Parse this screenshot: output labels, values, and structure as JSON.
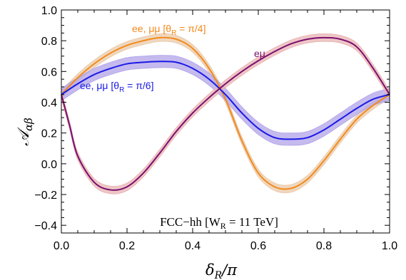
{
  "chart_data": {
    "type": "line",
    "xlabel": "δ_R/π",
    "ylabel": "𝒜_αβ",
    "xlim": [
      0.0,
      1.0
    ],
    "ylim": [
      -0.45,
      1.0
    ],
    "xticks": [
      "0.0",
      "0.2",
      "0.4",
      "0.6",
      "0.8",
      "1.0"
    ],
    "yticks": [
      "-0.4",
      "-0.2",
      "0.0",
      "0.2",
      "0.4",
      "0.6",
      "0.8",
      "1.0"
    ],
    "inset_text": "FCC−hh [W_R = 11 TeV]",
    "series": [
      {
        "name": "ee, μμ [θ_R = π/4]",
        "color": "#f28a1c",
        "band_color": "#e9c9a8",
        "x": [
          0.0,
          0.05,
          0.1,
          0.15,
          0.2,
          0.25,
          0.3,
          0.35,
          0.4,
          0.45,
          0.5,
          0.55,
          0.6,
          0.65,
          0.7,
          0.75,
          0.8,
          0.85,
          0.9,
          0.95,
          1.0
        ],
        "y": [
          0.45,
          0.56,
          0.65,
          0.72,
          0.77,
          0.8,
          0.82,
          0.81,
          0.75,
          0.62,
          0.42,
          0.15,
          -0.06,
          -0.15,
          -0.16,
          -0.1,
          0.02,
          0.16,
          0.29,
          0.38,
          0.45
        ],
        "band": 0.025
      },
      {
        "name": "ee, μμ [θ_R = π/6]",
        "color": "#1a1ae6",
        "band_color": "#b2a3e8",
        "x": [
          0.0,
          0.05,
          0.1,
          0.15,
          0.2,
          0.25,
          0.3,
          0.35,
          0.4,
          0.45,
          0.5,
          0.55,
          0.6,
          0.65,
          0.7,
          0.75,
          0.8,
          0.85,
          0.9,
          0.95,
          1.0
        ],
        "y": [
          0.45,
          0.52,
          0.58,
          0.62,
          0.65,
          0.66,
          0.665,
          0.66,
          0.62,
          0.55,
          0.45,
          0.33,
          0.23,
          0.17,
          0.16,
          0.17,
          0.22,
          0.29,
          0.36,
          0.42,
          0.45
        ],
        "band": 0.04
      },
      {
        "name": "eμ",
        "color": "#7b0f6e",
        "band_color": "#e8b3b3",
        "x": [
          0.0,
          0.025,
          0.05,
          0.1,
          0.15,
          0.2,
          0.25,
          0.3,
          0.35,
          0.4,
          0.45,
          0.5,
          0.55,
          0.6,
          0.65,
          0.7,
          0.75,
          0.8,
          0.85,
          0.9,
          0.95,
          1.0
        ],
        "y": [
          0.45,
          0.25,
          0.05,
          -0.12,
          -0.17,
          -0.15,
          -0.06,
          0.07,
          0.21,
          0.33,
          0.43,
          0.52,
          0.6,
          0.67,
          0.73,
          0.78,
          0.81,
          0.82,
          0.81,
          0.76,
          0.62,
          0.45
        ],
        "band": 0.025
      }
    ]
  }
}
